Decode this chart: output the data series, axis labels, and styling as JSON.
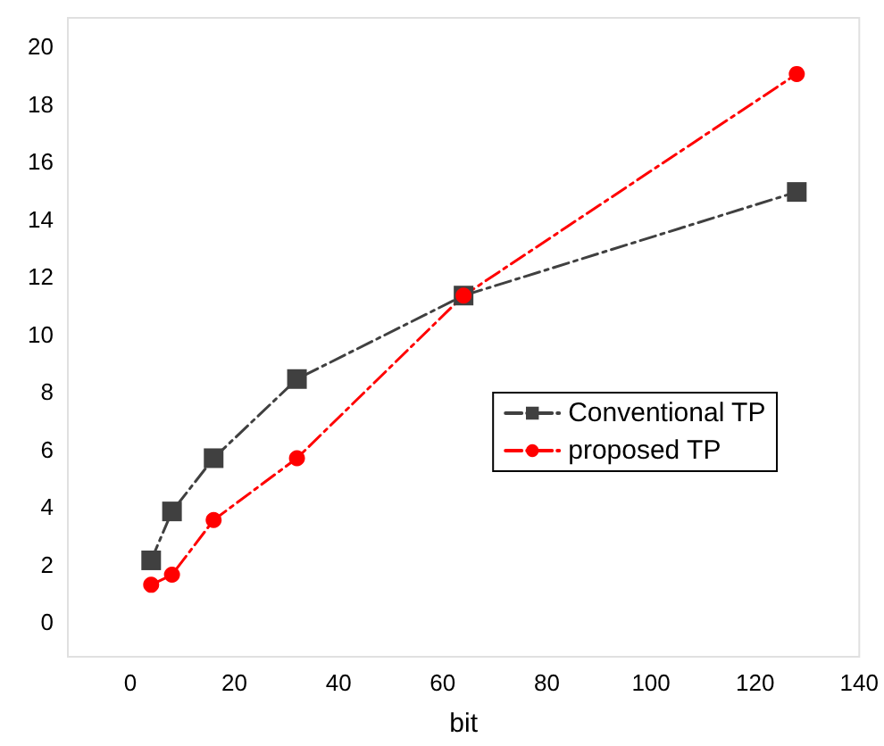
{
  "chart_data": {
    "type": "line",
    "xlabel": "bit",
    "x": [
      4,
      8,
      16,
      32,
      64,
      128
    ],
    "series": [
      {
        "name": "Conventional TP",
        "color": "#404040",
        "marker": "square",
        "values": [
          2.15,
          3.85,
          5.7,
          8.45,
          11.35,
          14.95
        ]
      },
      {
        "name": "proposed TP",
        "color": "#ff0000",
        "marker": "circle",
        "values": [
          1.3,
          1.65,
          3.55,
          5.7,
          11.35,
          19.05
        ]
      }
    ],
    "xlim": [
      -12,
      140
    ],
    "xticks": [
      0,
      20,
      40,
      60,
      80,
      100,
      120,
      140
    ],
    "ylim": [
      -1.2,
      21
    ],
    "yticks": [
      0,
      2,
      4,
      6,
      8,
      10,
      12,
      14,
      16,
      18,
      20
    ],
    "grid": false,
    "legend": "right",
    "line_style": "dashed"
  }
}
